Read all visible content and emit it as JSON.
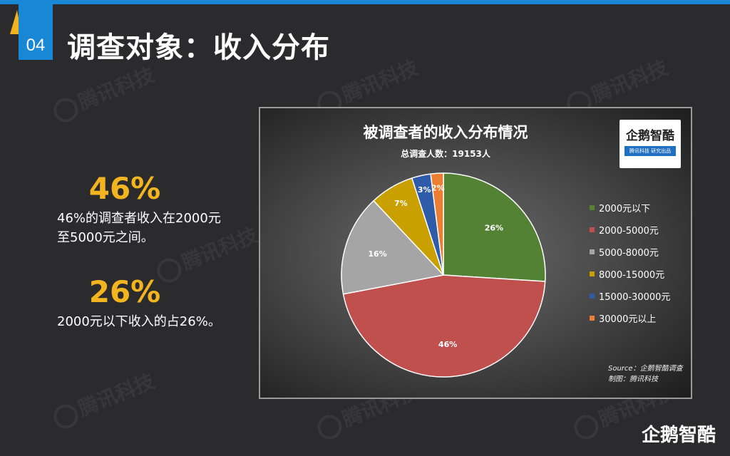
{
  "header": {
    "section_number": "04",
    "title": "调查对象：收入分布"
  },
  "watermark_text": "腾讯科技",
  "stats": [
    {
      "value": "46%",
      "desc_line1": "46%的调查者收入在2000元",
      "desc_line2": "至5000元之间。"
    },
    {
      "value": "26%",
      "desc_line1": "2000元以下收入的占26%。",
      "desc_line2": ""
    }
  ],
  "logo": {
    "name": "企鹅智酷",
    "tagline": "腾讯科技 研究出品"
  },
  "chart_data": {
    "type": "pie",
    "title": "被调查者的收入分布情况",
    "subtitle": "总调查人数：19153人",
    "categories": [
      "2000元以下",
      "2000-5000元",
      "5000-8000元",
      "8000-15000元",
      "15000-30000元",
      "30000元以上"
    ],
    "values": [
      26,
      46,
      16,
      7,
      3,
      2
    ],
    "data_labels": [
      "26%",
      "46%",
      "16%",
      "7%",
      "3%",
      "2%"
    ],
    "colors": [
      "#548235",
      "#c0504d",
      "#a5a5a5",
      "#c9a000",
      "#2f5ca8",
      "#ed7d31"
    ],
    "legend_position": "right",
    "source_line1": "Source：企鹅智酷调查",
    "source_line2": "制图：腾讯科技"
  },
  "bottom_logo": "企鹅智酷"
}
